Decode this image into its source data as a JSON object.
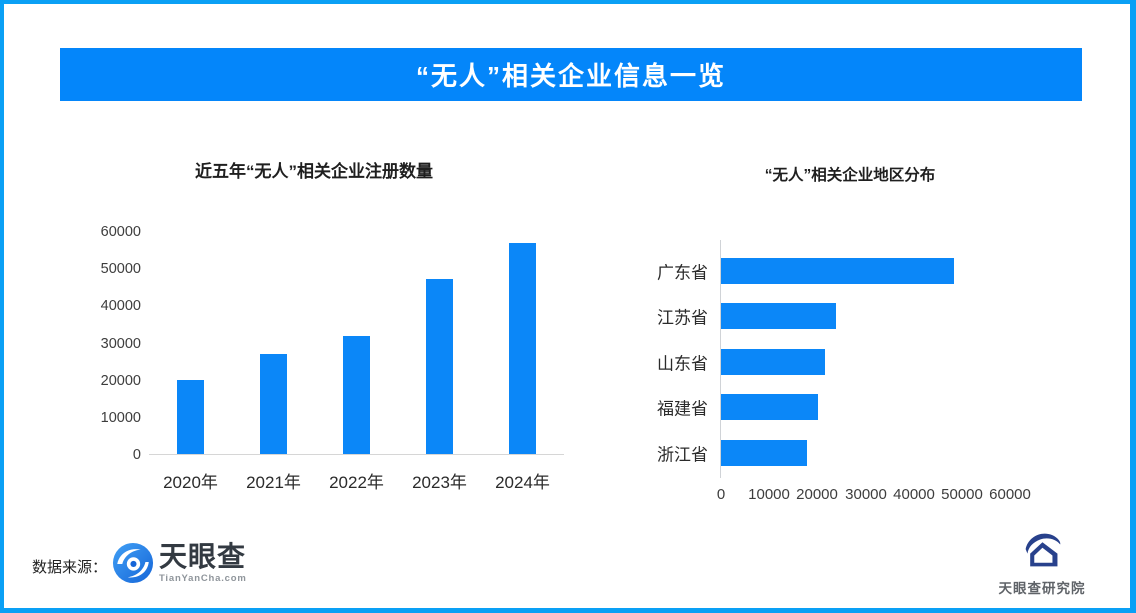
{
  "banner": {
    "title": "“无人”相关企业信息一览"
  },
  "chart_data": [
    {
      "type": "bar",
      "orientation": "vertical",
      "title": "近五年“无人”相关企业注册数量",
      "categories": [
        "2020年",
        "2021年",
        "2022年",
        "2023年",
        "2024年"
      ],
      "values": [
        19900,
        26900,
        31800,
        47100,
        56800
      ],
      "xlabel": "",
      "ylabel": "",
      "ylim": [
        0,
        60000
      ],
      "ytick_step": 10000,
      "grid": false,
      "legend": false,
      "bar_color": "#0b87f8"
    },
    {
      "type": "bar",
      "orientation": "horizontal",
      "title": "“无人”相关企业地区分布",
      "categories": [
        "广东省",
        "江苏省",
        "山东省",
        "福建省",
        "浙江省"
      ],
      "values": [
        48300,
        23800,
        21600,
        20100,
        17800
      ],
      "xlabel": "",
      "ylabel": "",
      "xlim": [
        0,
        60000
      ],
      "xtick_step": 10000,
      "grid": false,
      "legend": false,
      "bar_color": "#0b87f8"
    }
  ],
  "footer": {
    "source_label": "数据来源：",
    "tianyancha": {
      "brand": "天眼查",
      "domain": "TianYanCha.com"
    },
    "research": {
      "brand": "天眼查研究院"
    }
  },
  "colors": {
    "frame_border": "#0aa0f5",
    "banner_bg": "#0486fa",
    "bar_fill": "#0b87f8",
    "banner_text": "#ffffff",
    "axis_text": "#3d3d3d"
  }
}
